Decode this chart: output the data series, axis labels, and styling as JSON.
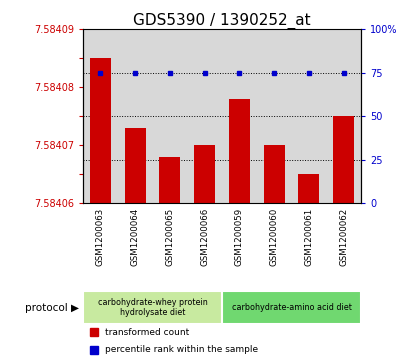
{
  "title": "GDS5390 / 1390252_at",
  "samples": [
    "GSM1200063",
    "GSM1200064",
    "GSM1200065",
    "GSM1200066",
    "GSM1200059",
    "GSM1200060",
    "GSM1200061",
    "GSM1200062"
  ],
  "red_values": [
    7.584085,
    7.584073,
    7.584068,
    7.58407,
    7.584078,
    7.58407,
    7.584065,
    7.584075
  ],
  "blue_values": [
    75,
    75,
    75,
    75,
    75,
    75,
    75,
    75
  ],
  "ylim_red": [
    7.58406,
    7.58409
  ],
  "ylim_blue": [
    0,
    100
  ],
  "yticks_red": [
    7.58406,
    7.584065,
    7.58407,
    7.584075,
    7.58408,
    7.584085,
    7.58409
  ],
  "ytick_labels_red": [
    "7.58406",
    "",
    "7.58407",
    "",
    "7.58408",
    "",
    "7.58409"
  ],
  "yticks_blue": [
    0,
    25,
    50,
    75,
    100
  ],
  "ytick_labels_blue": [
    "0",
    "25",
    "50",
    "75",
    "100%"
  ],
  "group1_label": "carbohydrate-whey protein\nhydrolysate diet",
  "group2_label": "carbohydrate-amino acid diet",
  "group1_color": "#c8eaa0",
  "group2_color": "#70d870",
  "protocol_label": "protocol",
  "legend_red_label": "transformed count",
  "legend_blue_label": "percentile rank within the sample",
  "bar_color_red": "#cc0000",
  "bar_color_blue": "#0000cc",
  "bar_width": 0.6,
  "col_bg_color": "#d8d8d8",
  "plot_bg": "#ffffff",
  "title_fontsize": 11
}
